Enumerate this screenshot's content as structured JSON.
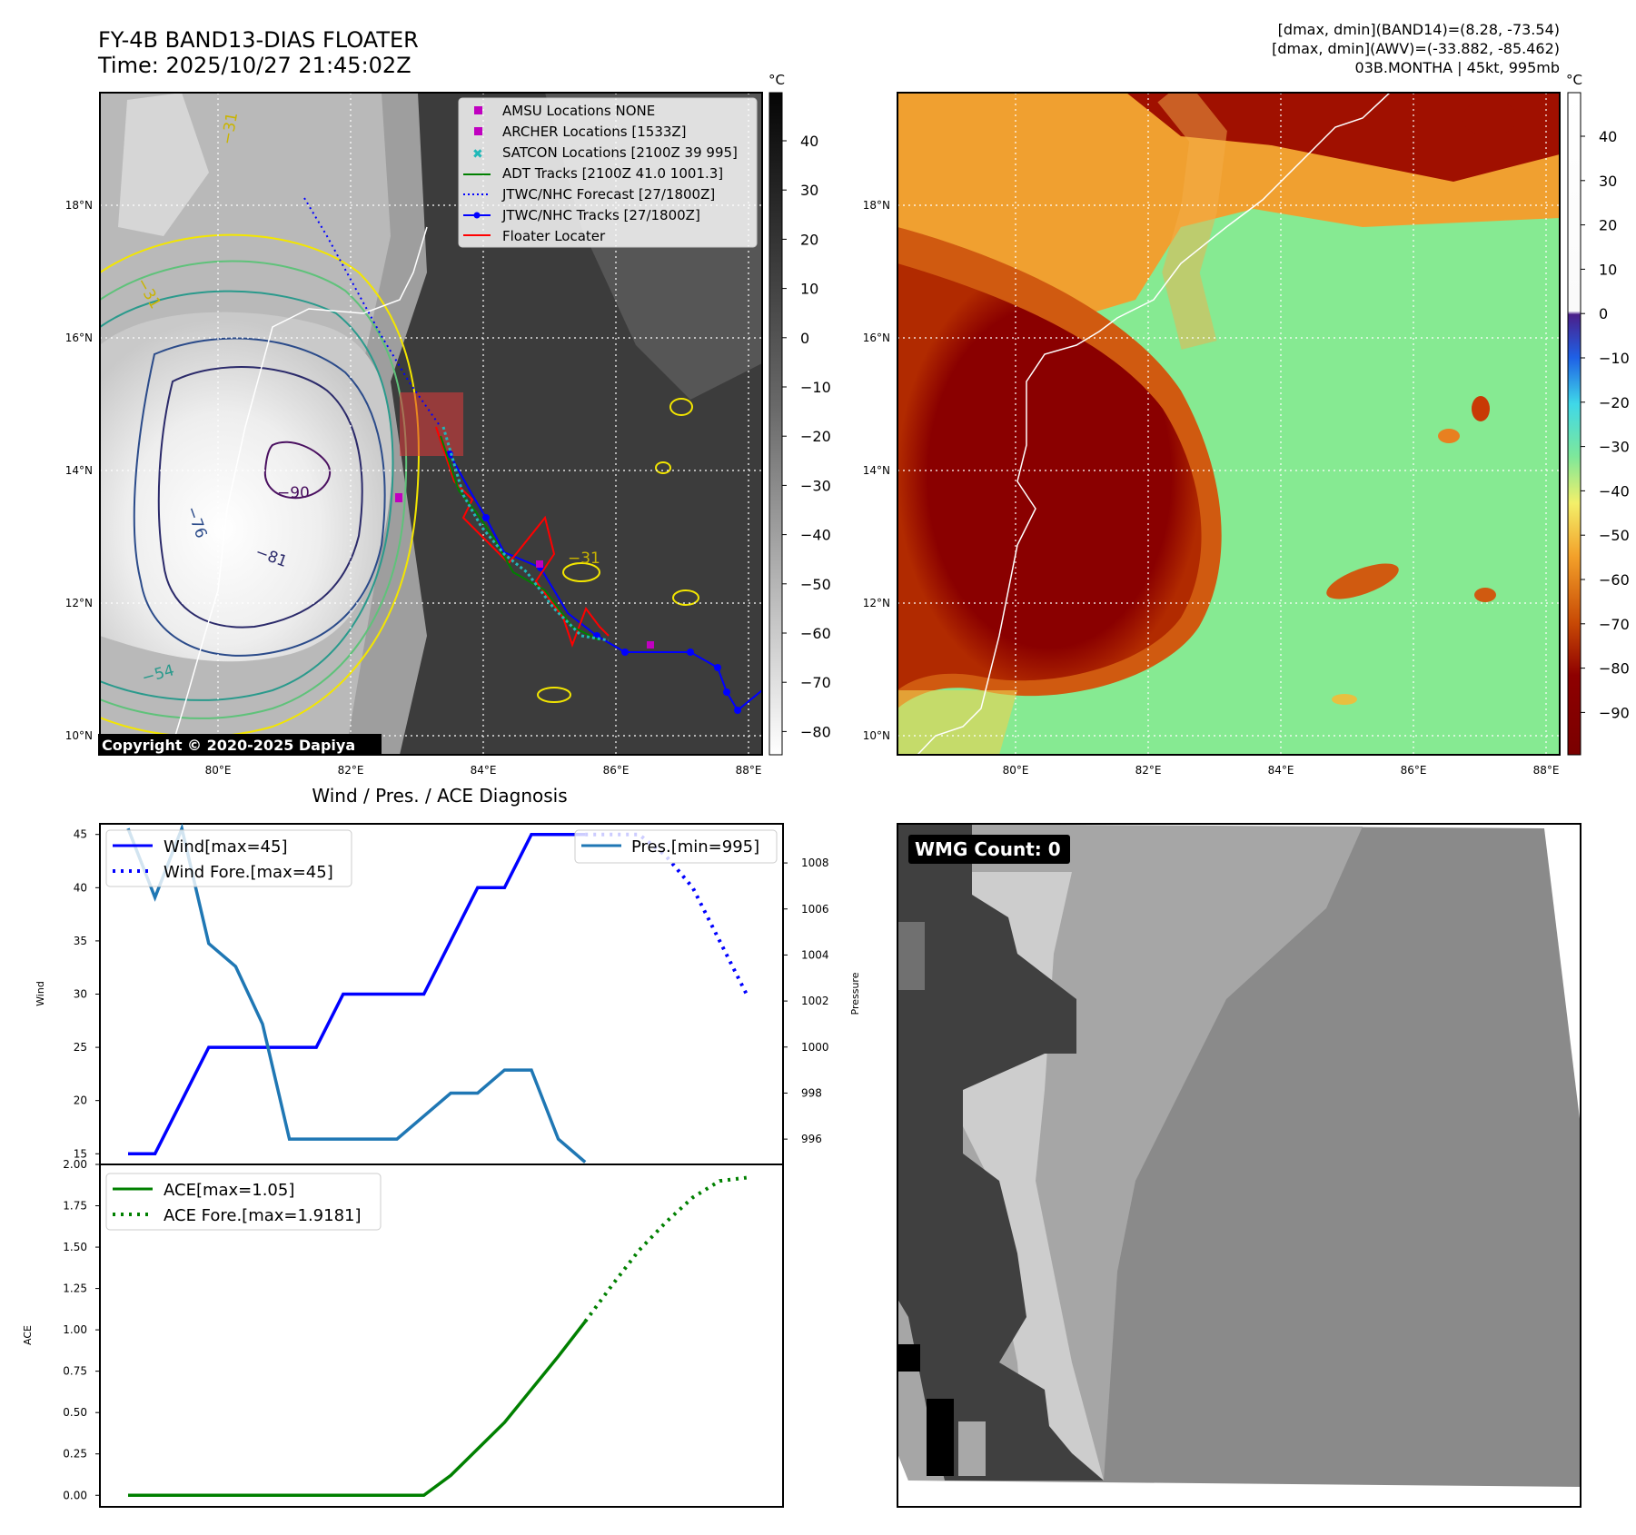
{
  "header": {
    "title_line1": "FY-4B BAND13-DIAS FLOATER",
    "title_line2": "Time: 2025/10/27 21:45:02Z",
    "right_line1": "[dmax, dmin](BAND14)=(8.28, -73.54)",
    "right_line2": "[dmax, dmin](AWV)=(-33.882, -85.462)",
    "right_line3": "03B.MONTHA | 45kt, 995mb"
  },
  "maps": {
    "lon_ticks": [
      "80°E",
      "82°E",
      "84°E",
      "86°E",
      "88°E"
    ],
    "lat_ticks": [
      "18°N",
      "16°N",
      "14°N",
      "12°N",
      "10°N"
    ],
    "copyright": "Copyright © 2020-2025 Dapiya",
    "ir_colorbar": {
      "unit": "°C",
      "ticks": [
        "40",
        "30",
        "20",
        "10",
        "0",
        "−10",
        "−20",
        "−30",
        "−40",
        "−50",
        "−60",
        "−70",
        "−80"
      ]
    },
    "wv_colorbar": {
      "unit": "°C",
      "ticks": [
        "40",
        "30",
        "20",
        "10",
        "0",
        "−10",
        "−20",
        "−30",
        "−40",
        "−50",
        "−60",
        "−70",
        "−80",
        "−90"
      ]
    },
    "contour_labels": [
      "−90",
      "−81",
      "−76",
      "−54",
      "−31",
      "−31",
      "−31"
    ],
    "legend": [
      {
        "label": "AMSU Locations NONE",
        "color": "#c000c0"
      },
      {
        "label": "ARCHER Locations [1533Z]",
        "color": "#c000c0"
      },
      {
        "label": "SATCON Locations [2100Z 39 995]",
        "color": "#20b8b8"
      },
      {
        "label": "ADT Tracks [2100Z 41.0 1001.3]",
        "color": "#008000"
      },
      {
        "label": "JTWC/NHC Forecast [27/1800Z]",
        "color": "#0000ff"
      },
      {
        "label": "JTWC/NHC Tracks [27/1800Z]",
        "color": "#0000ff"
      },
      {
        "label": "Floater Locater",
        "color": "#ff0000"
      }
    ],
    "wmg_label": "WMG Count: 0"
  },
  "diag": {
    "title": "Wind / Pres. / ACE Diagnosis",
    "wind_ylabel": "Wind",
    "pres_ylabel": "Pressure",
    "ace_ylabel": "ACE",
    "wind_legend": [
      "Wind[max=45]",
      "Wind Fore.[max=45]"
    ],
    "pres_legend": [
      "Pres.[min=995]"
    ],
    "ace_legend": [
      "ACE[max=1.05]",
      "ACE Fore.[max=1.9181]"
    ]
  },
  "chart_data": [
    {
      "type": "line",
      "ylabel": "Wind",
      "ylim": [
        14,
        46
      ],
      "yticks": [
        15,
        20,
        25,
        30,
        35,
        40,
        45
      ],
      "series": [
        {
          "name": "Wind[max=45]",
          "style": "solid",
          "color": "#0000ff",
          "x": [
            0,
            1,
            2,
            3,
            4,
            5,
            6,
            7,
            8,
            9,
            10,
            11,
            12,
            13,
            14,
            15,
            16,
            17
          ],
          "y": [
            15,
            15,
            20,
            25,
            25,
            25,
            25,
            25,
            30,
            30,
            30,
            30,
            35,
            40,
            40,
            45,
            45,
            45
          ]
        },
        {
          "name": "Wind Fore.[max=45]",
          "style": "dotted",
          "color": "#0000ff",
          "x": [
            17,
            18,
            19,
            20,
            21,
            22,
            23
          ],
          "y": [
            45,
            45,
            45,
            43,
            40,
            35,
            30
          ]
        }
      ]
    },
    {
      "type": "line",
      "ylabel": "Pressure",
      "ylim": [
        994.9,
        1009.7
      ],
      "yticks": [
        996,
        998,
        1000,
        1002,
        1004,
        1006,
        1008
      ],
      "series": [
        {
          "name": "Pres.[min=995]",
          "style": "solid",
          "color": "#1f77b4",
          "x": [
            0,
            1,
            2,
            3,
            4,
            5,
            6,
            7,
            8,
            9,
            10,
            11,
            12,
            13,
            14,
            15,
            16,
            17
          ],
          "y": [
            1009.5,
            1006.5,
            1009.5,
            1004.5,
            1003.5,
            1001,
            996,
            996,
            996,
            996,
            996,
            997,
            998,
            998,
            999,
            999,
            996,
            995
          ]
        }
      ]
    },
    {
      "type": "line",
      "ylabel": "ACE",
      "ylim": [
        -0.07,
        2.0
      ],
      "yticks": [
        0.0,
        0.25,
        0.5,
        0.75,
        1.0,
        1.25,
        1.5,
        1.75,
        2.0
      ],
      "series": [
        {
          "name": "ACE[max=1.05]",
          "style": "solid",
          "color": "#008000",
          "x": [
            0,
            1,
            2,
            3,
            4,
            5,
            6,
            7,
            8,
            9,
            10,
            11,
            12,
            13,
            14,
            15,
            16,
            17
          ],
          "y": [
            0,
            0,
            0,
            0,
            0,
            0,
            0,
            0,
            0,
            0,
            0,
            0,
            0.12,
            0.28,
            0.44,
            0.64,
            0.84,
            1.05
          ]
        },
        {
          "name": "ACE Fore.[max=1.9181]",
          "style": "dotted",
          "color": "#008000",
          "x": [
            17,
            18,
            19,
            20,
            21,
            22,
            23
          ],
          "y": [
            1.05,
            1.27,
            1.48,
            1.65,
            1.8,
            1.9,
            1.92
          ]
        }
      ]
    }
  ]
}
